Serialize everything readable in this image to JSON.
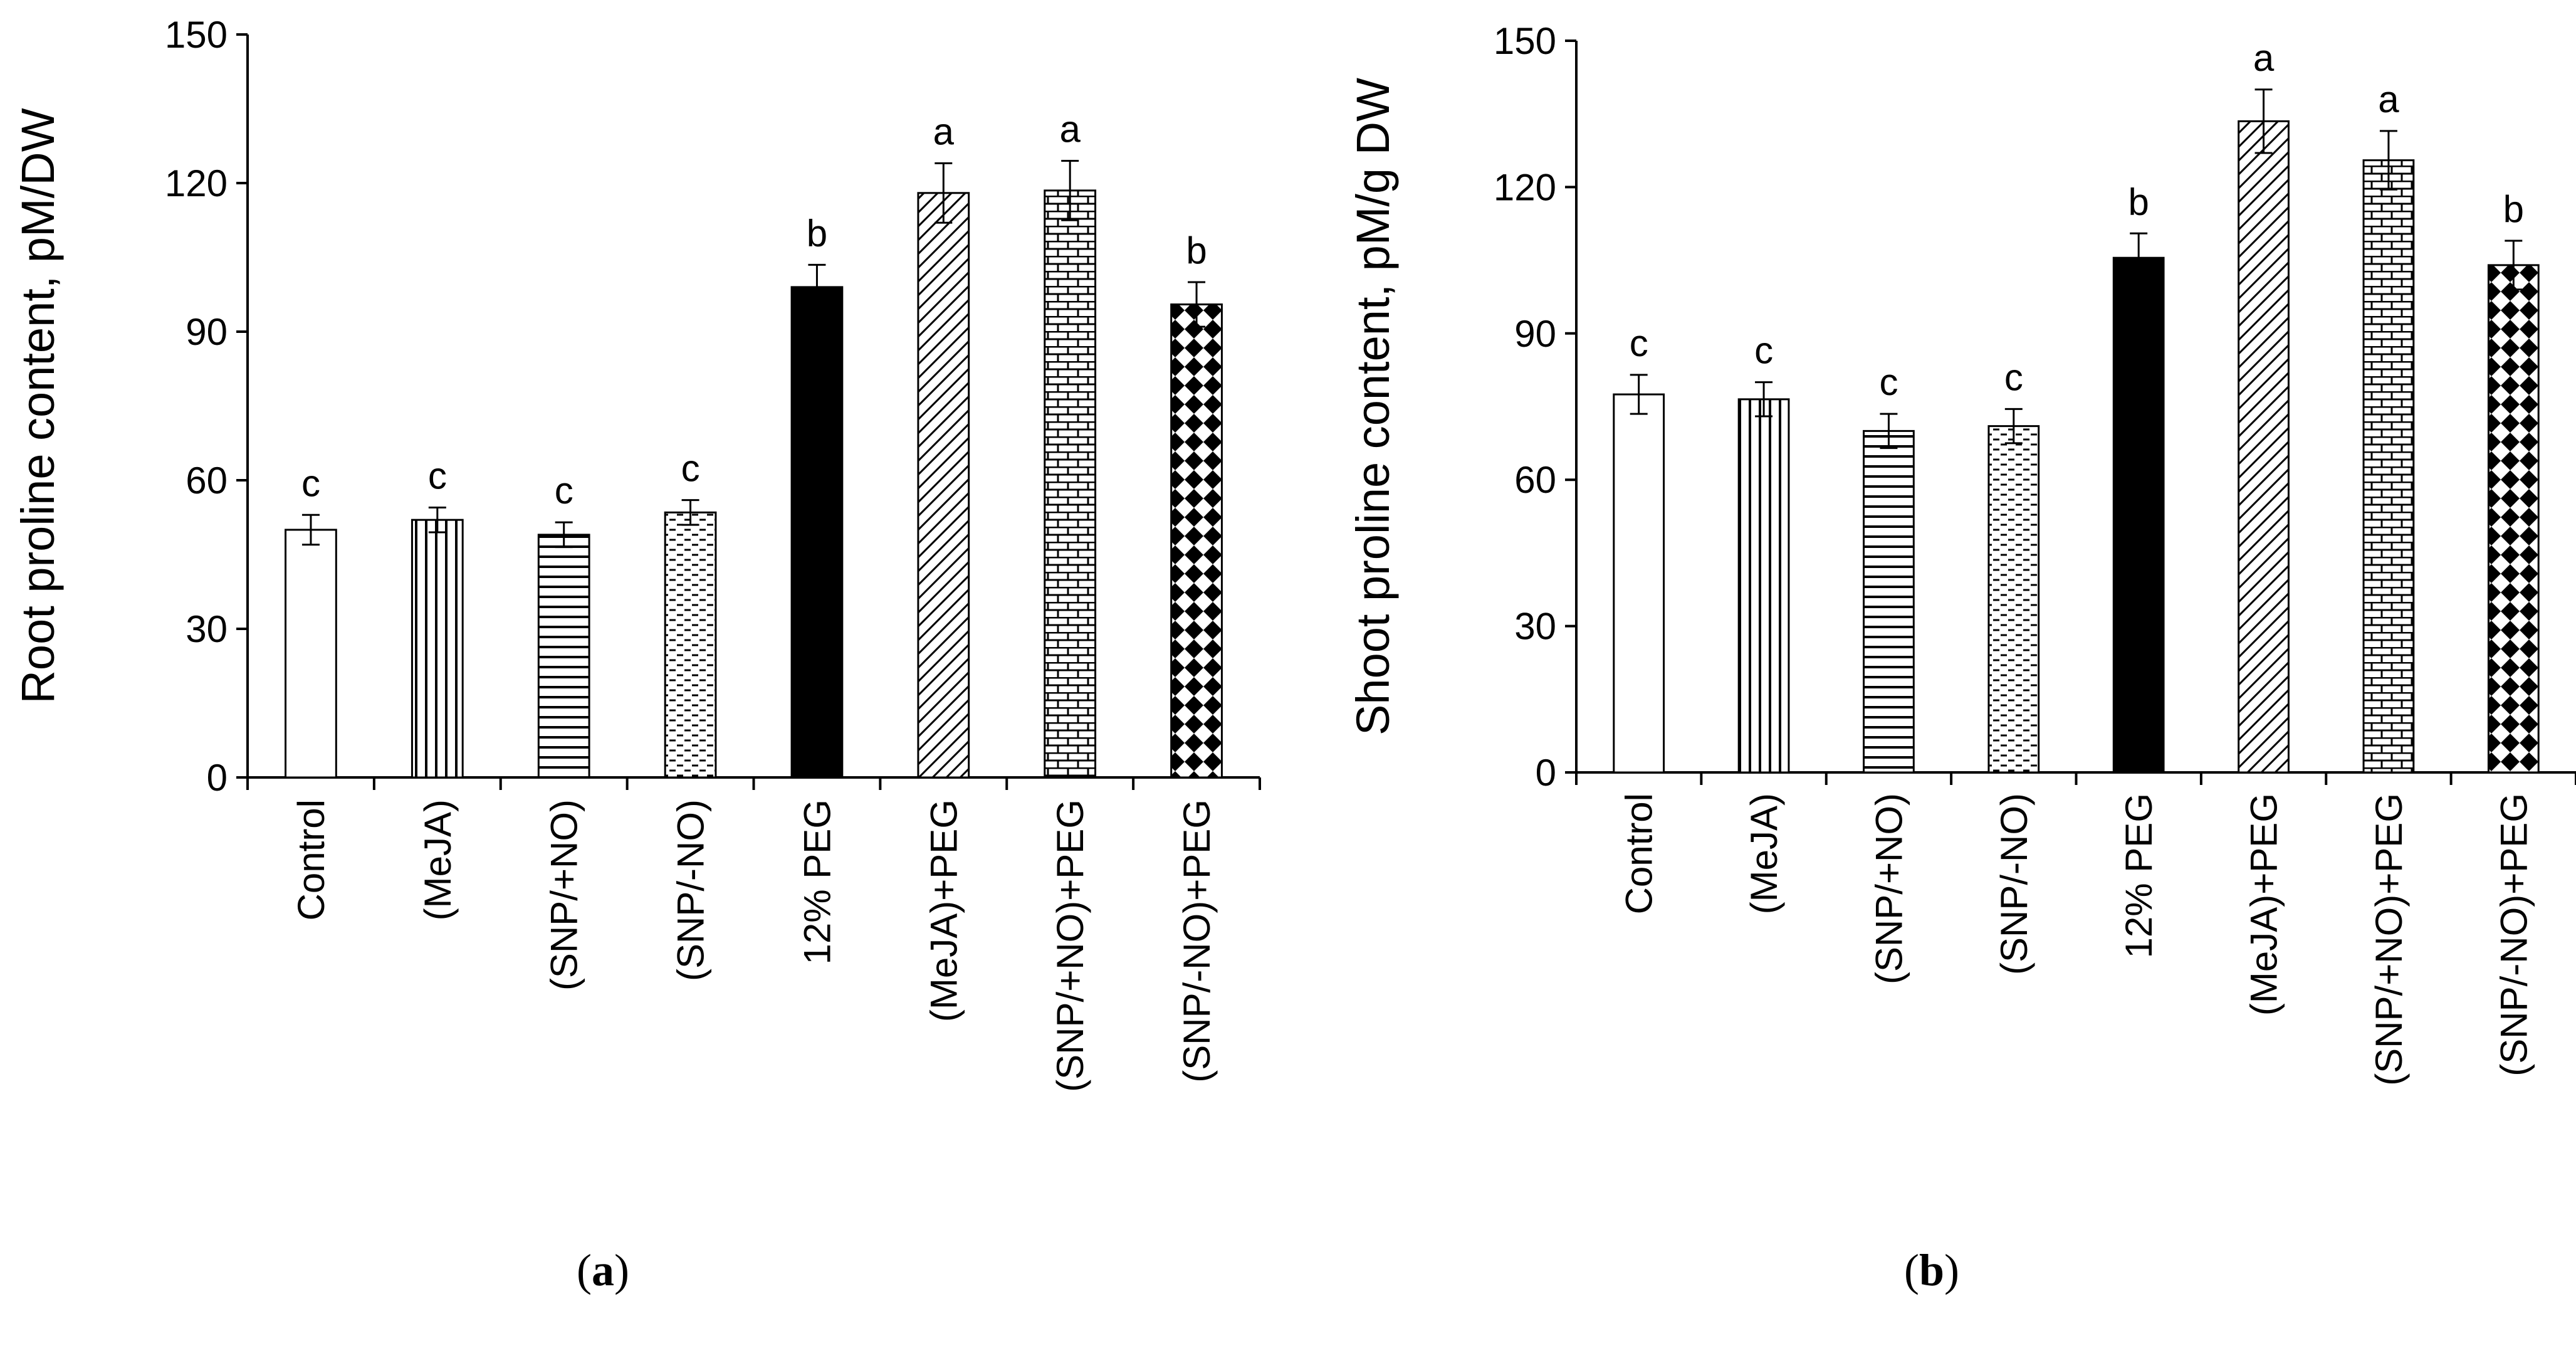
{
  "chart_data": [
    {
      "type": "bar",
      "panel": "a",
      "ylabel": "Root proline content, pM/DW",
      "ylim": [
        0,
        150
      ],
      "yticks": [
        0,
        30,
        60,
        90,
        120,
        150
      ],
      "categories": [
        "Control",
        "(MeJA)",
        "(SNP/+NO)",
        "(SNP/-NO)",
        "12% PEG",
        "(MeJA)+PEG",
        "(SNP/+NO)+PEG",
        "(SNP/-NO)+PEG"
      ],
      "values": [
        50,
        52,
        49,
        53.5,
        99,
        118,
        118.5,
        95.5
      ],
      "errors": [
        3,
        2.5,
        2.5,
        2.5,
        4.5,
        6,
        6,
        4.5
      ],
      "significance": [
        "c",
        "c",
        "c",
        "c",
        "b",
        "a",
        "a",
        "b"
      ],
      "patterns": [
        "white",
        "vertical",
        "horizontal",
        "dash",
        "black",
        "diagonal",
        "brick",
        "diamond"
      ]
    },
    {
      "type": "bar",
      "panel": "b",
      "ylabel": "Shoot proline content, pM/g DW",
      "ylim": [
        0,
        150
      ],
      "yticks": [
        0,
        30,
        60,
        90,
        120,
        150
      ],
      "categories": [
        "Control",
        "(MeJA)",
        "(SNP/+NO)",
        "(SNP/-NO)",
        "12% PEG",
        "(MeJA)+PEG",
        "(SNP/+NO)+PEG",
        "(SNP/-NO)+PEG"
      ],
      "values": [
        77.5,
        76.5,
        70,
        71,
        105.5,
        133.5,
        125.5,
        104
      ],
      "errors": [
        4,
        3.5,
        3.5,
        3.5,
        5,
        6.5,
        6,
        5
      ],
      "significance": [
        "c",
        "c",
        "c",
        "c",
        "b",
        "a",
        "a",
        "b"
      ],
      "patterns": [
        "white",
        "vertical",
        "horizontal",
        "dash",
        "black",
        "diagonal",
        "brick",
        "diamond"
      ]
    }
  ],
  "captions": {
    "a": {
      "open": "(",
      "letter": "a",
      "close": ")"
    },
    "b": {
      "open": "(",
      "letter": "b",
      "close": ")"
    }
  }
}
